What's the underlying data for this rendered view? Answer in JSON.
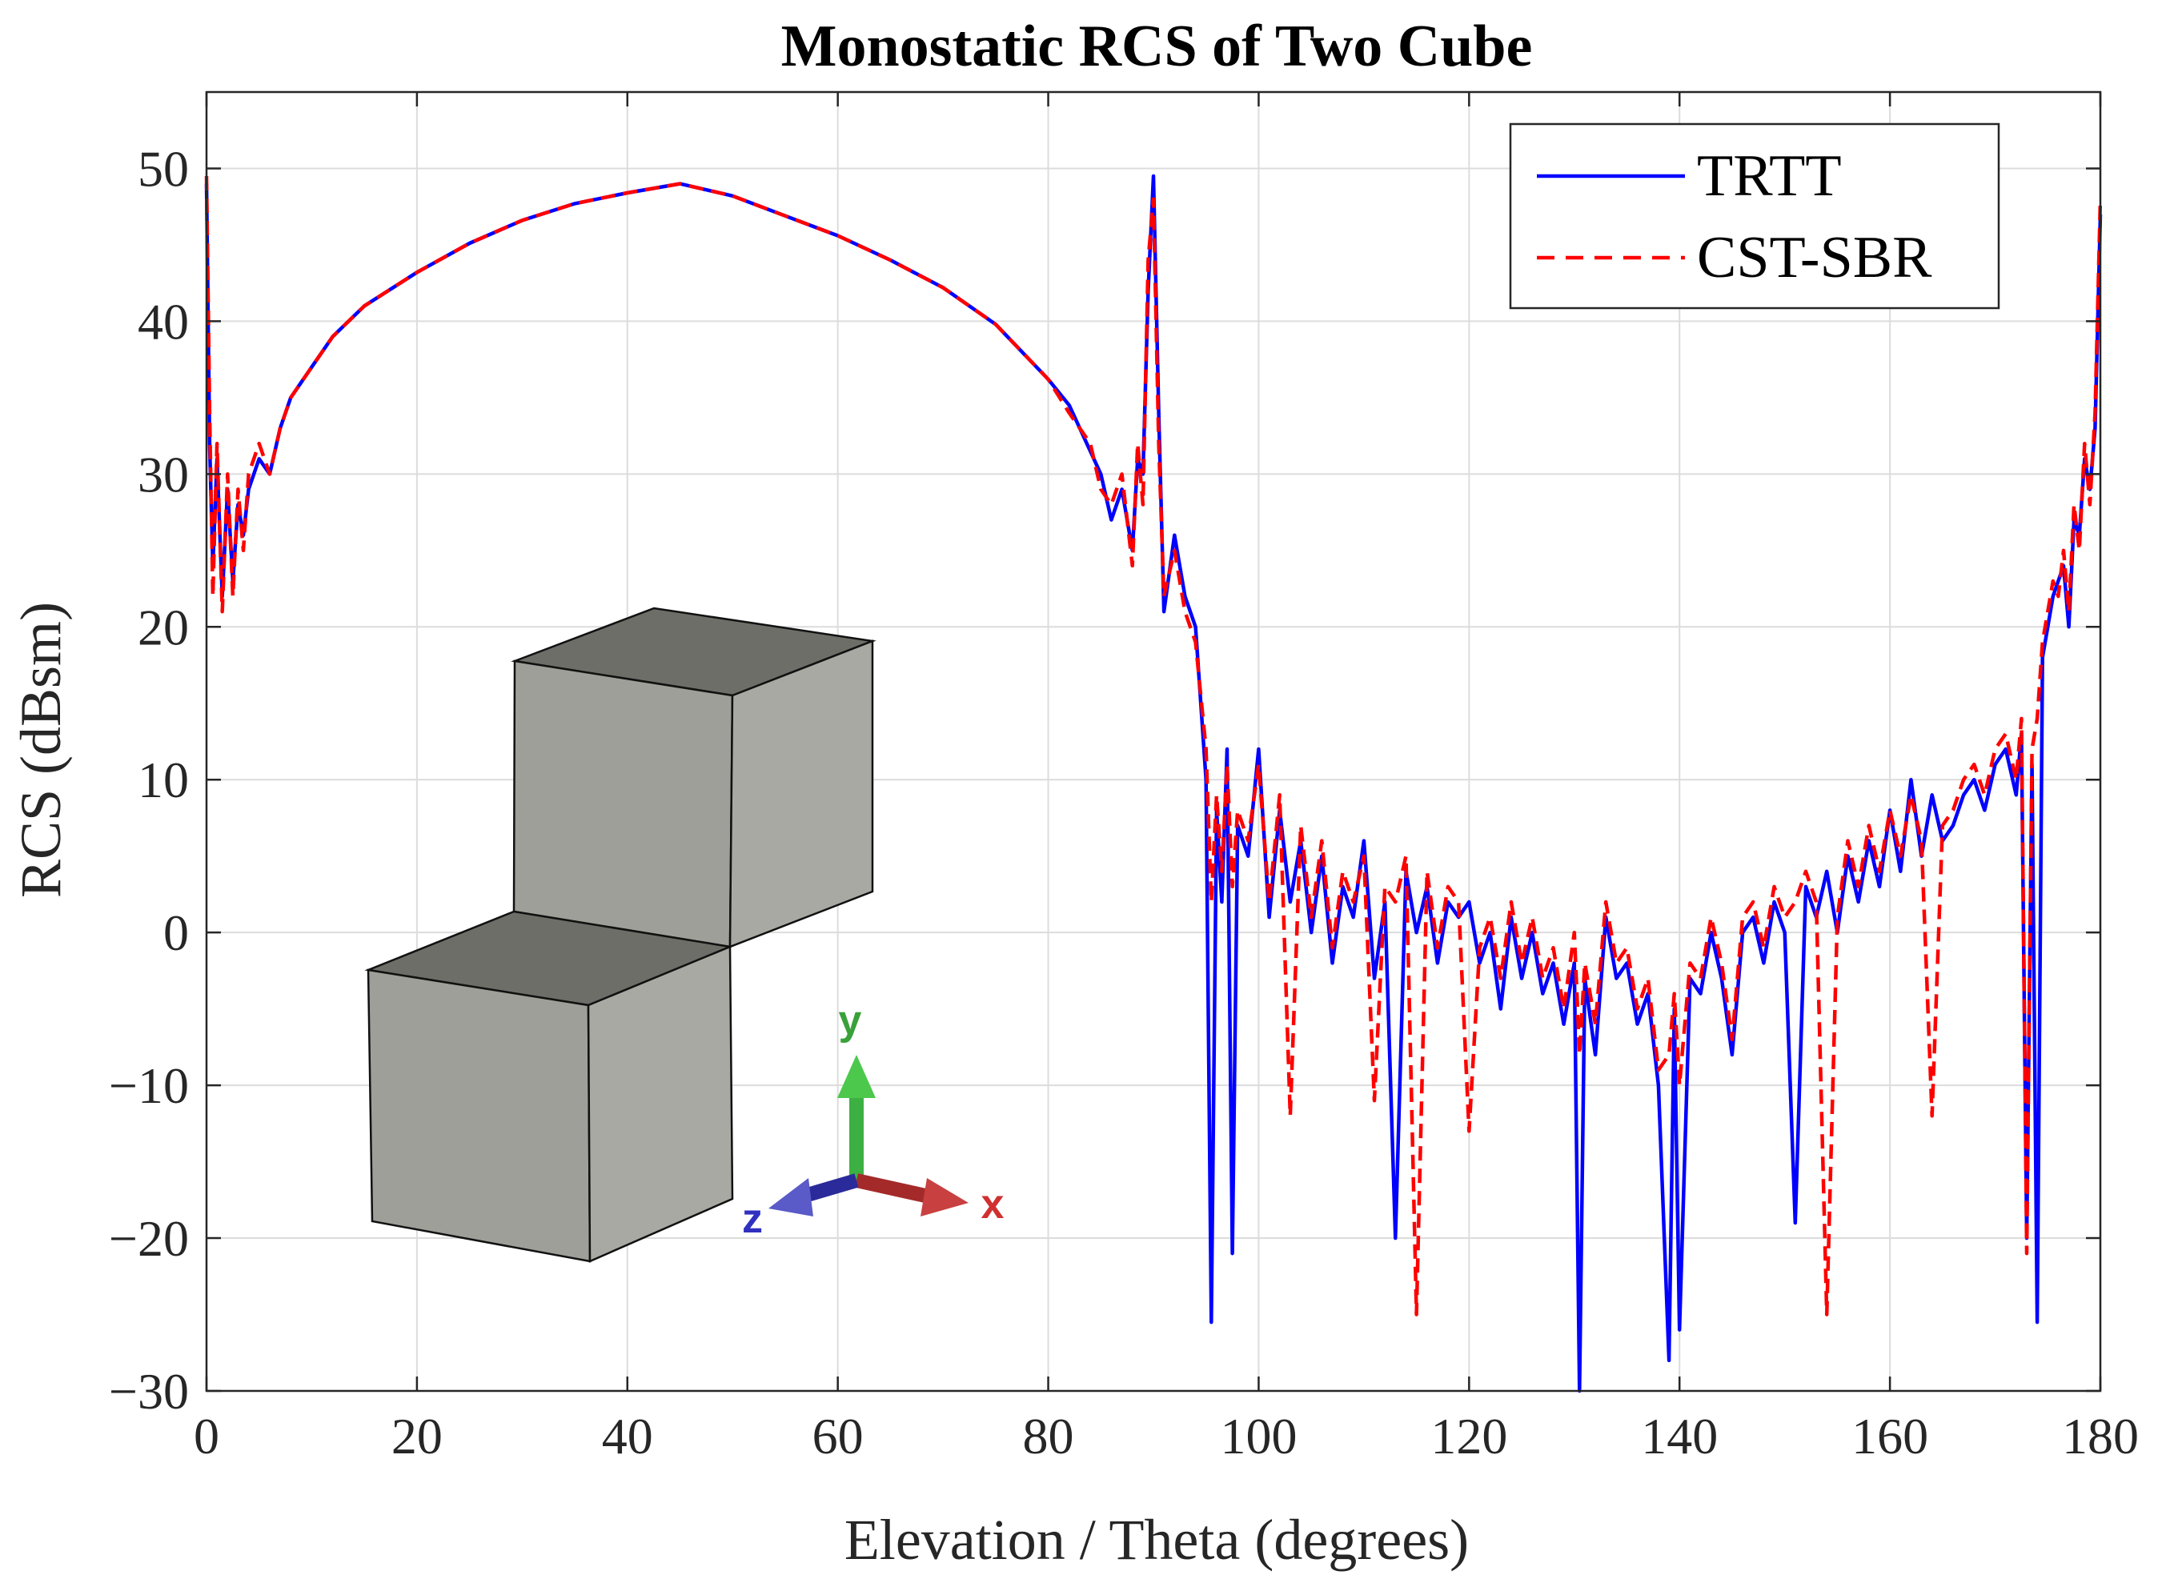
{
  "chart_data": {
    "type": "line",
    "title": "Monostatic RCS of Two Cube",
    "xlabel": "Elevation / Theta (degrees)",
    "ylabel": "RCS (dBsm)",
    "xlim": [
      0,
      180
    ],
    "ylim": [
      -30,
      55
    ],
    "xticks": [
      0,
      20,
      40,
      60,
      80,
      100,
      120,
      140,
      160,
      180
    ],
    "yticks": [
      -30,
      -20,
      -10,
      0,
      10,
      20,
      30,
      40,
      50
    ],
    "xtick_labels": [
      "0",
      "20",
      "40",
      "60",
      "80",
      "100",
      "120",
      "140",
      "160",
      "180"
    ],
    "ytick_labels": [
      "−30",
      "−20",
      "−10",
      "0",
      "10",
      "20",
      "30",
      "40",
      "50"
    ],
    "grid": true,
    "legend_position": "top-right",
    "series": [
      {
        "name": "TRTT",
        "color": "#0000ff",
        "style": "solid",
        "x": [
          0,
          0.3,
          0.6,
          1,
          1.5,
          2,
          2.5,
          3,
          3.5,
          4,
          5,
          6,
          7,
          8,
          10,
          12,
          15,
          20,
          25,
          30,
          35,
          40,
          45,
          50,
          55,
          60,
          65,
          70,
          75,
          80,
          82,
          84,
          85,
          86,
          87,
          88,
          88.5,
          89,
          89.5,
          90,
          90.5,
          91,
          92,
          93,
          94,
          95,
          95.5,
          96,
          96.5,
          97,
          97.5,
          98,
          99,
          100,
          101,
          102,
          103,
          104,
          105,
          106,
          107,
          108,
          109,
          110,
          111,
          112,
          113,
          114,
          115,
          116,
          117,
          118,
          119,
          120,
          121,
          122,
          123,
          124,
          125,
          126,
          127,
          128,
          129,
          130,
          130.5,
          131,
          132,
          133,
          134,
          135,
          136,
          137,
          138,
          139,
          139.5,
          140,
          141,
          142,
          143,
          144,
          145,
          146,
          147,
          148,
          149,
          150,
          151,
          152,
          153,
          154,
          155,
          156,
          157,
          158,
          159,
          160,
          161,
          162,
          163,
          164,
          165,
          166,
          167,
          168,
          169,
          170,
          171,
          172,
          172.5,
          173,
          173.5,
          174,
          174.5,
          175,
          175.5,
          176,
          176.5,
          177,
          177.5,
          178,
          178.5,
          179,
          179.5,
          180
        ],
        "y": [
          49,
          32,
          24,
          31,
          22,
          29,
          23,
          28,
          26,
          29,
          31,
          30,
          33,
          35,
          37,
          39,
          41,
          43.2,
          45.1,
          46.6,
          47.7,
          48.4,
          49,
          48.2,
          46.9,
          45.6,
          44,
          42.2,
          39.8,
          36.2,
          34.5,
          31.5,
          30,
          27,
          29,
          25,
          31,
          30,
          42,
          49.5,
          34,
          21,
          26,
          22,
          20,
          10,
          -25.5,
          8,
          2,
          12,
          -21,
          7,
          5,
          12,
          1,
          8,
          2,
          6,
          0,
          5,
          -2,
          3,
          1,
          6,
          -3,
          2,
          -20,
          4,
          0,
          3,
          -2,
          2,
          1,
          2,
          -2,
          0,
          -5,
          1,
          -3,
          0,
          -4,
          -2,
          -6,
          -2,
          -30,
          -3,
          -8,
          1,
          -3,
          -2,
          -6,
          -4,
          -10,
          -28,
          -5,
          -26,
          -3,
          -4,
          0,
          -3,
          -8,
          0,
          1,
          -2,
          2,
          0,
          -19,
          3,
          1,
          4,
          0,
          5,
          2,
          6,
          3,
          8,
          4,
          10,
          5,
          9,
          6,
          7,
          9,
          10,
          8,
          11,
          12,
          9,
          13,
          -20,
          11,
          -25.5,
          18,
          20,
          22,
          23,
          24,
          20,
          27,
          26,
          31,
          29,
          33,
          47
        ]
      },
      {
        "name": "CST-SBR",
        "color": "#ff0000",
        "style": "dashed",
        "x": [
          0,
          0.3,
          0.6,
          1,
          1.5,
          2,
          2.5,
          3,
          3.5,
          4,
          5,
          6,
          7,
          8,
          10,
          12,
          15,
          20,
          25,
          30,
          35,
          40,
          45,
          50,
          55,
          60,
          65,
          70,
          75,
          80,
          82,
          84,
          85,
          86,
          87,
          88,
          88.5,
          89,
          89.5,
          90,
          90.5,
          91,
          92,
          93,
          94,
          95,
          95.5,
          96,
          96.5,
          97,
          97.5,
          98,
          99,
          100,
          101,
          102,
          103,
          104,
          105,
          106,
          107,
          108,
          109,
          110,
          111,
          112,
          113,
          114,
          115,
          116,
          117,
          118,
          119,
          120,
          121,
          122,
          123,
          124,
          125,
          126,
          127,
          128,
          129,
          130,
          130.5,
          131,
          132,
          133,
          134,
          135,
          136,
          137,
          138,
          139,
          139.5,
          140,
          141,
          142,
          143,
          144,
          145,
          146,
          147,
          148,
          149,
          150,
          151,
          152,
          153,
          154,
          155,
          156,
          157,
          158,
          159,
          160,
          161,
          162,
          163,
          164,
          165,
          166,
          167,
          168,
          169,
          170,
          171,
          172,
          172.5,
          173,
          173.5,
          174,
          174.5,
          175,
          175.5,
          176,
          176.5,
          177,
          177.5,
          178,
          178.5,
          179,
          179.5,
          180
        ],
        "y": [
          49.5,
          34,
          22,
          32,
          21,
          30,
          22,
          29,
          25,
          30,
          32,
          30,
          33,
          35,
          37,
          39,
          41,
          43.2,
          45.1,
          46.6,
          47.7,
          48.4,
          49,
          48.2,
          46.9,
          45.6,
          44,
          42.2,
          39.8,
          36.2,
          34,
          32,
          29,
          28,
          30,
          24,
          32,
          28,
          44,
          48,
          32,
          22,
          25,
          21,
          19,
          12,
          2,
          9,
          4,
          11,
          3,
          8,
          6,
          11,
          2,
          9,
          -12,
          7,
          1,
          6,
          -1,
          4,
          2,
          5,
          -11,
          3,
          2,
          5,
          -25,
          4,
          -1,
          3,
          2,
          -13,
          -1,
          1,
          -3,
          2,
          -2,
          1,
          -3,
          -1,
          -5,
          0,
          -8,
          -2,
          -6,
          2,
          -2,
          -1,
          -5,
          -3,
          -9,
          -8,
          -4,
          -10,
          -2,
          -3,
          1,
          -2,
          -7,
          1,
          2,
          -1,
          3,
          1,
          2,
          4,
          2,
          -25,
          1,
          6,
          3,
          7,
          4,
          8,
          5,
          9,
          6,
          -12,
          7,
          8,
          10,
          11,
          9,
          12,
          13,
          10,
          14,
          -21,
          12,
          14,
          19,
          21,
          23,
          22,
          25,
          21,
          28,
          25,
          32,
          28,
          34,
          48
        ]
      }
    ]
  },
  "inset": {
    "axis_x": "x",
    "axis_y": "y",
    "axis_z": "z"
  }
}
